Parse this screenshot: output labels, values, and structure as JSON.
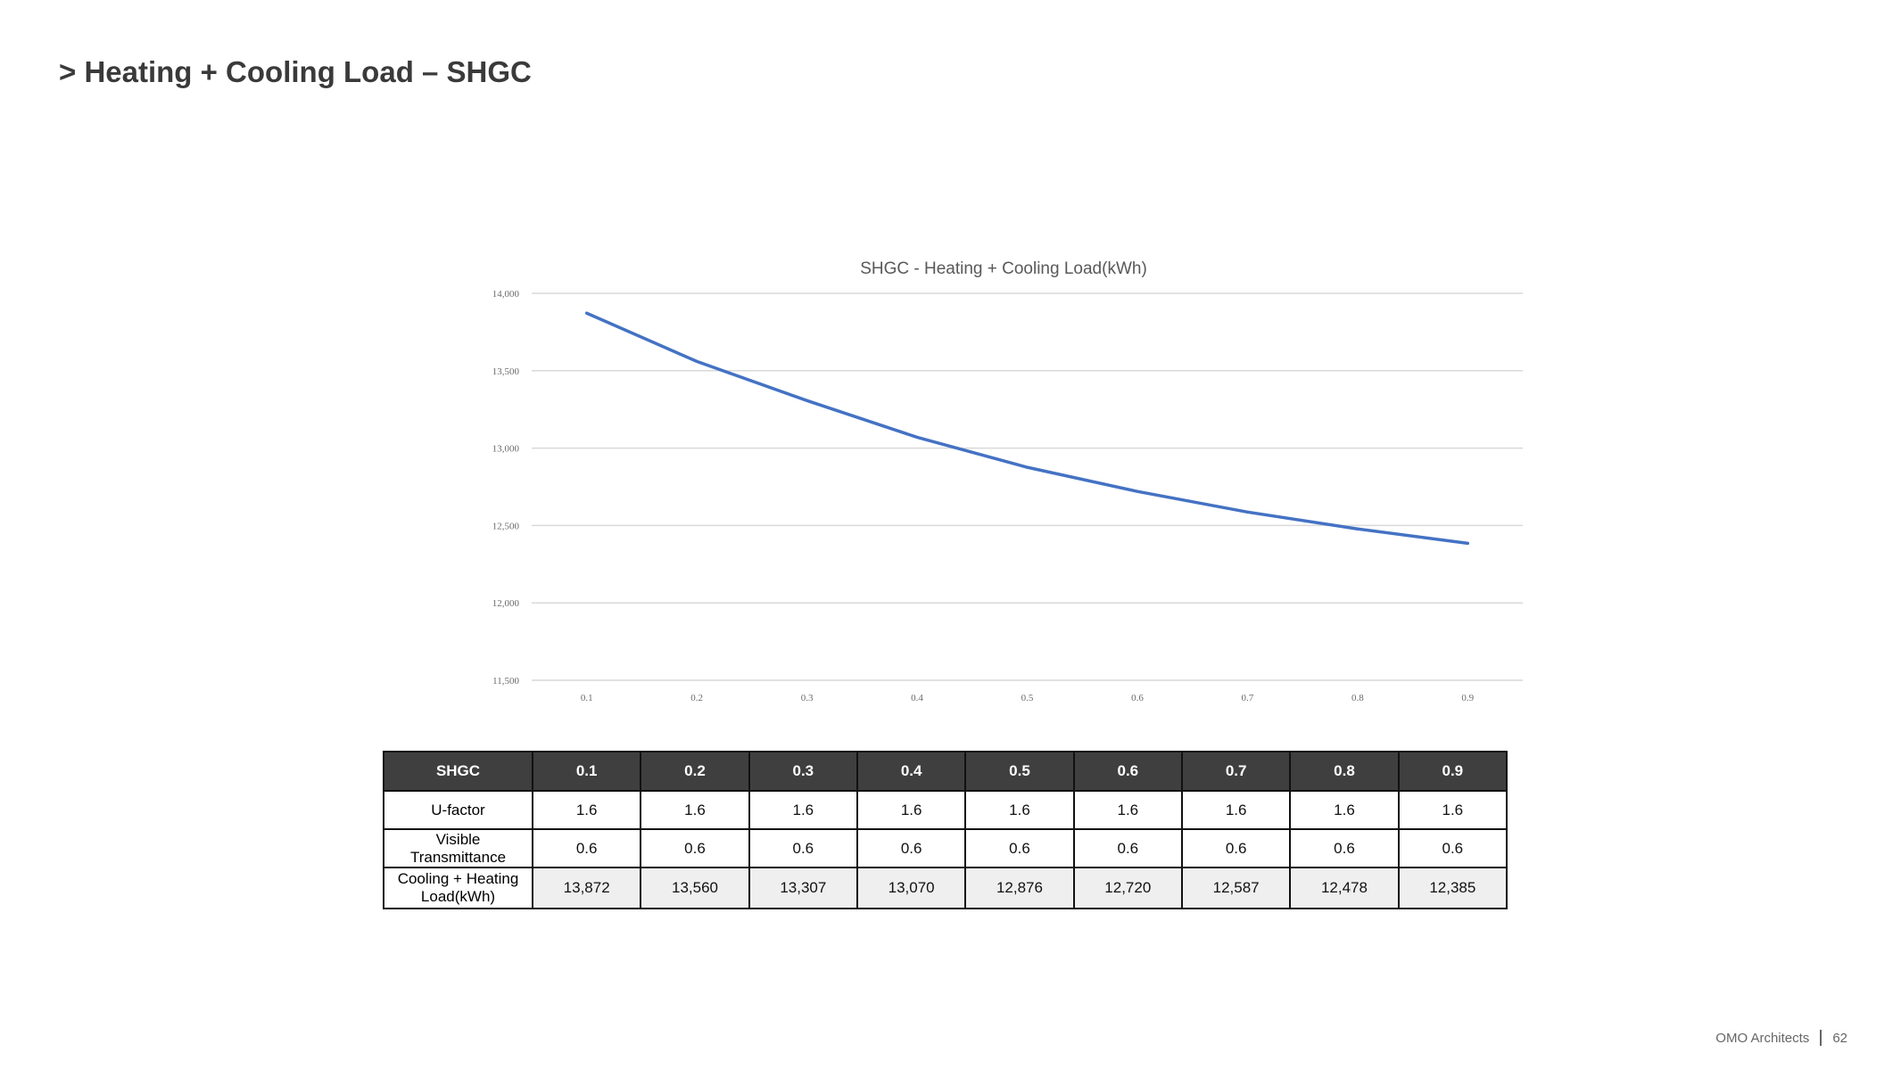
{
  "slide": {
    "title": "> Heating + Cooling Load – SHGC",
    "footer_brand": "OMO Architects",
    "page_number": "62"
  },
  "colors": {
    "line": "#4472C4",
    "header_bg": "#3F3F3F",
    "gridline": "#D9D9D9"
  },
  "chart_data": {
    "type": "line",
    "title": "SHGC - Heating + Cooling Load(kWh)",
    "xlabel": "",
    "ylabel": "",
    "categories": [
      "0.1",
      "0.2",
      "0.3",
      "0.4",
      "0.5",
      "0.6",
      "0.7",
      "0.8",
      "0.9"
    ],
    "series": [
      {
        "values": [
          13872,
          13560,
          13307,
          13070,
          12876,
          12720,
          12587,
          12478,
          12385
        ]
      }
    ],
    "ylim": [
      11500,
      14000
    ],
    "yticks": [
      11500,
      12000,
      12500,
      13000,
      13500,
      14000
    ],
    "ytick_labels": [
      "11,500",
      "12,000",
      "12,500",
      "13,000",
      "13,500",
      "14,000"
    ],
    "grid": true,
    "legend": "none"
  },
  "table": {
    "header": [
      "SHGC",
      "0.1",
      "0.2",
      "0.3",
      "0.4",
      "0.5",
      "0.6",
      "0.7",
      "0.8",
      "0.9"
    ],
    "rows": [
      {
        "label": "U-factor",
        "values": [
          "1.6",
          "1.6",
          "1.6",
          "1.6",
          "1.6",
          "1.6",
          "1.6",
          "1.6",
          "1.6"
        ]
      },
      {
        "label": "Visible Transmittance",
        "values": [
          "0.6",
          "0.6",
          "0.6",
          "0.6",
          "0.6",
          "0.6",
          "0.6",
          "0.6",
          "0.6"
        ]
      },
      {
        "label": "Cooling + Heating Load(kWh)",
        "values": [
          "13,872",
          "13,560",
          "13,307",
          "13,070",
          "12,876",
          "12,720",
          "12,587",
          "12,478",
          "12,385"
        ]
      }
    ]
  }
}
